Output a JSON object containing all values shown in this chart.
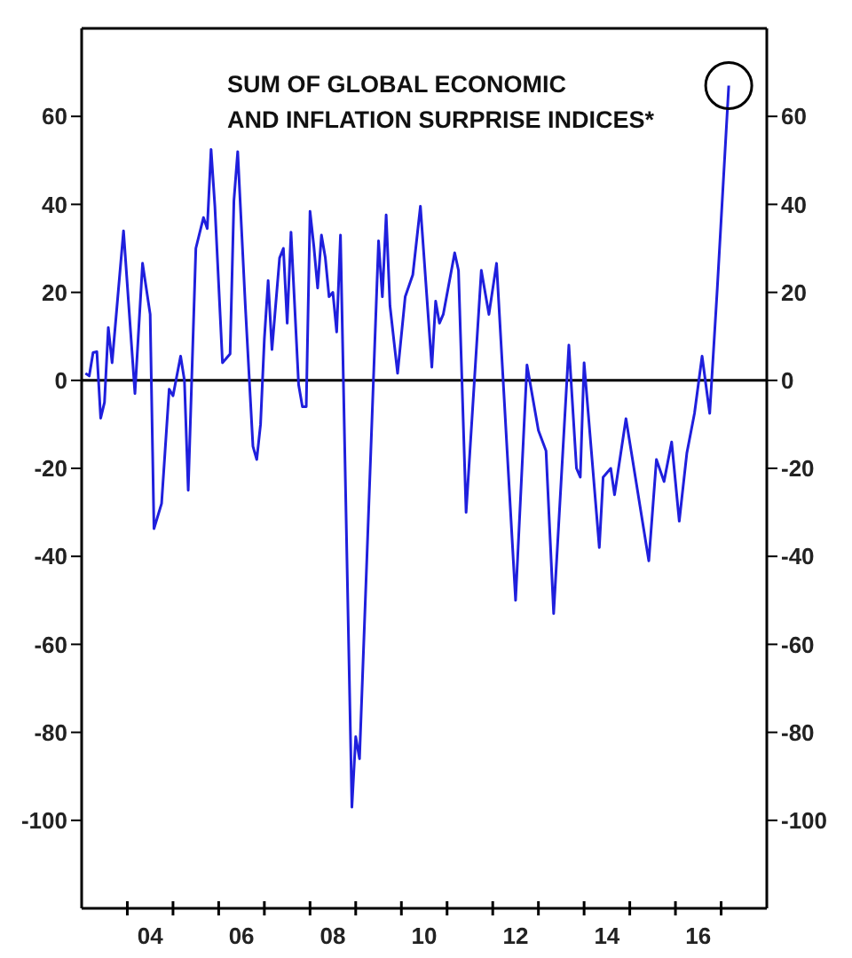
{
  "chart_data": {
    "type": "line",
    "title": "SUM OF GLOBAL ECONOMIC\nAND INFLATION SURPRISE INDICES*",
    "x": [
      "2003-02",
      "2003-03",
      "2003-04",
      "2003-05",
      "2003-06",
      "2003-07",
      "2003-08",
      "2003-09",
      "2003-12",
      "2004-03",
      "2004-05",
      "2004-07",
      "2004-08",
      "2004-10",
      "2004-12",
      "2005-01",
      "2005-03",
      "2005-04",
      "2005-05",
      "2005-07",
      "2005-09",
      "2005-10",
      "2005-11",
      "2005-12",
      "2006-02",
      "2006-04",
      "2006-05",
      "2006-06",
      "2006-08",
      "2006-10",
      "2006-11",
      "2006-12",
      "2007-01",
      "2007-02",
      "2007-03",
      "2007-05",
      "2007-06",
      "2007-07",
      "2007-08",
      "2007-10",
      "2007-11",
      "2007-12",
      "2008-01",
      "2008-02",
      "2008-03",
      "2008-04",
      "2008-05",
      "2008-06",
      "2008-07",
      "2008-08",
      "2008-09",
      "2008-12",
      "2009-01",
      "2009-02",
      "2009-07",
      "2009-08",
      "2009-09",
      "2009-10",
      "2009-12",
      "2010-02",
      "2010-04",
      "2010-06",
      "2010-09",
      "2010-10",
      "2010-11",
      "2010-12",
      "2011-03",
      "2011-04",
      "2011-06",
      "2011-10",
      "2011-12",
      "2012-02",
      "2012-07",
      "2012-10",
      "2013-01",
      "2013-03",
      "2013-05",
      "2013-09",
      "2013-11",
      "2013-12",
      "2014-01",
      "2014-05",
      "2014-06",
      "2014-08",
      "2014-09",
      "2014-12",
      "2015-06",
      "2015-08",
      "2015-10",
      "2015-12",
      "2016-02",
      "2016-04",
      "2016-06",
      "2016-08",
      "2016-10",
      "2016-12",
      "2017-03"
    ],
    "values": [
      1.6,
      1,
      6.3,
      6.5,
      -8.6,
      -5,
      12,
      4,
      34,
      -3,
      26.6,
      15,
      -33.7,
      -28,
      -2,
      -3.5,
      5.5,
      0,
      -25,
      30,
      37,
      34.5,
      52.5,
      39.6,
      4,
      6,
      40.8,
      52,
      17,
      -15,
      -18,
      -10,
      9.4,
      22.7,
      7,
      27.8,
      30,
      13,
      33.7,
      -1,
      -6,
      -6,
      38.4,
      30.5,
      21,
      33,
      28,
      19,
      20,
      11,
      33,
      -97,
      -81,
      -86,
      31.7,
      19,
      37.6,
      17,
      1.6,
      19,
      24,
      39.6,
      3,
      18,
      13,
      15,
      29,
      25,
      -30,
      25,
      15,
      26.6,
      -50,
      3.5,
      -11.4,
      -16,
      -53,
      8,
      -20,
      -22,
      4,
      -38,
      -22,
      -20,
      -26,
      -8.7,
      -41,
      -18,
      -23,
      -14,
      -32,
      -16.5,
      -7.5,
      5.5,
      -7.5,
      21,
      67
    ],
    "color": "#1f1fdd",
    "xlim": [
      "2003",
      "2018"
    ],
    "xticks": [
      {
        "value": "2004",
        "label": null
      },
      {
        "value": "2004-07",
        "label": "04"
      },
      {
        "value": "2005",
        "label": null
      },
      {
        "value": "2006",
        "label": null
      },
      {
        "value": "2006-07",
        "label": "06"
      },
      {
        "value": "2007",
        "label": null
      },
      {
        "value": "2008",
        "label": null
      },
      {
        "value": "2008-07",
        "label": "08"
      },
      {
        "value": "2009",
        "label": null
      },
      {
        "value": "2010",
        "label": null
      },
      {
        "value": "2010-07",
        "label": "10"
      },
      {
        "value": "2011",
        "label": null
      },
      {
        "value": "2012",
        "label": null
      },
      {
        "value": "2012-07",
        "label": "12"
      },
      {
        "value": "2013",
        "label": null
      },
      {
        "value": "2014",
        "label": null
      },
      {
        "value": "2014-07",
        "label": "14"
      },
      {
        "value": "2015",
        "label": null
      },
      {
        "value": "2016",
        "label": null
      },
      {
        "value": "2016-07",
        "label": "16"
      },
      {
        "value": "2017",
        "label": null
      }
    ],
    "ylim": [
      -120,
      80
    ],
    "yticks": [
      -100,
      -80,
      -60,
      -40,
      -20,
      0,
      20,
      40,
      60
    ],
    "y2lim": [
      -120,
      80
    ],
    "y2ticks": [
      -100,
      -80,
      -60,
      -40,
      -20,
      0,
      20,
      40,
      60
    ],
    "ref_lines": [
      {
        "axis": "y",
        "value": 0,
        "color": "#000000"
      }
    ],
    "grid": false,
    "marker": "none",
    "line_style": "solid"
  }
}
